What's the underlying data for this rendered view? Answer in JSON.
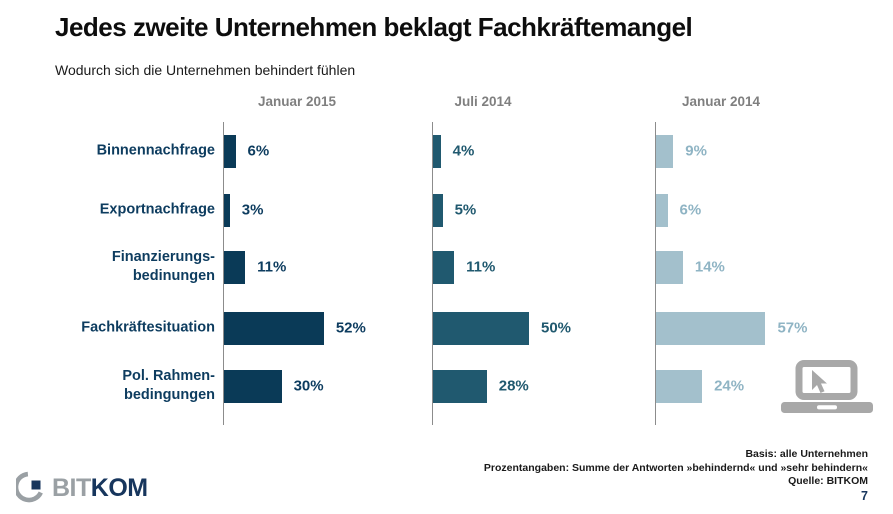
{
  "header": {
    "title": "Jedes zweite Unternehmen beklagt Fachkräftemangel",
    "subtitle": "Wodurch sich die Unternehmen behindert fühlen"
  },
  "chart_data": {
    "type": "bar",
    "orientation": "horizontal",
    "value_suffix": "%",
    "xlim": [
      0,
      100
    ],
    "grid": false,
    "legend_position": "column-headers-top",
    "categories": [
      "Binnennachfrage",
      "Exportnachfrage",
      "Finanzierungs-\nbedinungen",
      "Fachkräftesituation",
      "Pol. Rahmen-\nbedingungen"
    ],
    "series": [
      {
        "name": "Januar 2015",
        "bar_color": "#0a3a57",
        "label_color": "#0d3c5f",
        "values": [
          6,
          3,
          11,
          52,
          30
        ]
      },
      {
        "name": "Juli 2014",
        "bar_color": "#20596f",
        "label_color": "#20596f",
        "values": [
          4,
          5,
          11,
          50,
          28
        ]
      },
      {
        "name": "Januar 2014",
        "bar_color": "#a3c0cc",
        "label_color": "#8fb4c4",
        "values": [
          9,
          6,
          14,
          57,
          24
        ]
      }
    ]
  },
  "footer": {
    "notes": [
      "Basis: alle Unternehmen",
      "Prozentangaben: Summe der Antworten »behindernd« und »sehr behindern«",
      "Quelle: BITKOM"
    ],
    "page_number": "7"
  },
  "logo": {
    "text_light": "BIT",
    "text_bold": "KOM",
    "arc_color": "#9aa0a4",
    "square_color": "#17365d"
  },
  "watermark_icon": "laptop-with-cursor",
  "watermark_color": "#a8a8a8"
}
